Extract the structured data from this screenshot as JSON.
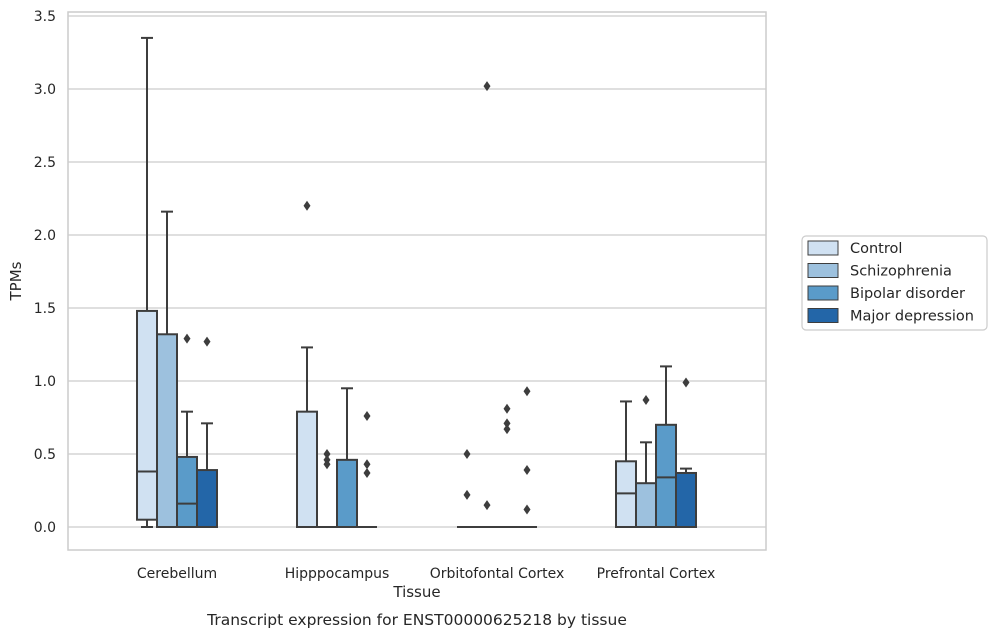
{
  "chart_data": {
    "type": "box",
    "title": "",
    "caption": "Transcript expression for ENST00000625218 by tissue",
    "xlabel": "Tissue",
    "ylabel": "TPMs",
    "ylim": [
      -0.16,
      3.54
    ],
    "yticks": [
      0.0,
      0.5,
      1.0,
      1.5,
      2.0,
      2.5,
      3.0,
      3.5
    ],
    "ytick_labels": [
      "0.0",
      "0.5",
      "1.0",
      "1.5",
      "2.0",
      "2.5",
      "3.0",
      "3.5"
    ],
    "grid": "horizontal",
    "legend_position": "outside-right",
    "categories": [
      "Cerebellum",
      "Hipppocampus",
      "Orbitofontal Cortex",
      "Prefrontal Cortex"
    ],
    "series": [
      {
        "name": "Control",
        "color": "#d0e1f2",
        "boxes": [
          {
            "q1": 0.05,
            "median": 0.38,
            "q3": 1.48,
            "whisker_low": 0.0,
            "whisker_high": 3.35,
            "outliers": []
          },
          {
            "q1": 0.0,
            "median": 0.0,
            "q3": 0.79,
            "whisker_low": 0.0,
            "whisker_high": 1.23,
            "outliers": [
              2.2
            ]
          },
          {
            "q1": 0.0,
            "median": 0.0,
            "q3": 0.0,
            "whisker_low": 0.0,
            "whisker_high": 0.0,
            "outliers": [
              0.5,
              0.22
            ]
          },
          {
            "q1": 0.0,
            "median": 0.23,
            "q3": 0.45,
            "whisker_low": 0.0,
            "whisker_high": 0.86,
            "outliers": []
          }
        ]
      },
      {
        "name": "Schizophrenia",
        "color": "#9dc1de",
        "boxes": [
          {
            "q1": 0.0,
            "median": 0.0,
            "q3": 1.32,
            "whisker_low": 0.0,
            "whisker_high": 2.16,
            "outliers": []
          },
          {
            "q1": 0.0,
            "median": 0.0,
            "q3": 0.0,
            "whisker_low": 0.0,
            "whisker_high": 0.0,
            "outliers": [
              0.5,
              0.46,
              0.43
            ]
          },
          {
            "q1": 0.0,
            "median": 0.0,
            "q3": 0.0,
            "whisker_low": 0.0,
            "whisker_high": 0.0,
            "outliers": [
              3.02,
              0.15
            ]
          },
          {
            "q1": 0.0,
            "median": 0.0,
            "q3": 0.3,
            "whisker_low": 0.0,
            "whisker_high": 0.58,
            "outliers": [
              0.87
            ]
          }
        ]
      },
      {
        "name": "Bipolar disorder",
        "color": "#5a9bc9",
        "boxes": [
          {
            "q1": 0.0,
            "median": 0.16,
            "q3": 0.48,
            "whisker_low": 0.0,
            "whisker_high": 0.79,
            "outliers": [
              1.29
            ]
          },
          {
            "q1": 0.0,
            "median": 0.0,
            "q3": 0.46,
            "whisker_low": 0.0,
            "whisker_high": 0.95,
            "outliers": []
          },
          {
            "q1": 0.0,
            "median": 0.0,
            "q3": 0.0,
            "whisker_low": 0.0,
            "whisker_high": 0.0,
            "outliers": [
              0.81,
              0.71,
              0.67
            ]
          },
          {
            "q1": 0.0,
            "median": 0.34,
            "q3": 0.7,
            "whisker_low": 0.0,
            "whisker_high": 1.1,
            "outliers": []
          }
        ]
      },
      {
        "name": "Major depression",
        "color": "#2366a8",
        "boxes": [
          {
            "q1": 0.0,
            "median": 0.0,
            "q3": 0.39,
            "whisker_low": 0.0,
            "whisker_high": 0.71,
            "outliers": [
              1.27
            ]
          },
          {
            "q1": 0.0,
            "median": 0.0,
            "q3": 0.0,
            "whisker_low": 0.0,
            "whisker_high": 0.0,
            "outliers": [
              0.76,
              0.43,
              0.37
            ]
          },
          {
            "q1": 0.0,
            "median": 0.0,
            "q3": 0.0,
            "whisker_low": 0.0,
            "whisker_high": 0.0,
            "outliers": [
              0.93,
              0.39,
              0.12
            ]
          },
          {
            "q1": 0.0,
            "median": 0.0,
            "q3": 0.37,
            "whisker_low": 0.0,
            "whisker_high": 0.4,
            "outliers": [
              0.99
            ]
          }
        ]
      }
    ]
  }
}
